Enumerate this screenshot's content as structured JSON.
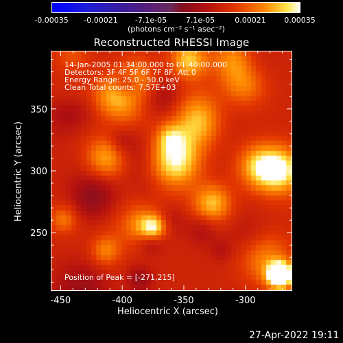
{
  "colorbar": {
    "tick_labels": [
      "-0.00035",
      "-0.00021",
      "-7.1e-05",
      "7.1e-05",
      "0.00021",
      "0.00035"
    ],
    "units": "(photons cm⁻² s⁻¹ asec⁻²)"
  },
  "chart_data": {
    "type": "heatmap",
    "title": "Reconstructed RHESSI Image",
    "xlabel": "Heliocentric X (arcsec)",
    "ylabel": "Heliocentric Y (arcsec)",
    "xlim": [
      -458,
      -262
    ],
    "ylim": [
      203,
      397
    ],
    "x_ticks": [
      -450,
      -400,
      -350,
      -300
    ],
    "y_ticks": [
      250,
      300,
      350
    ],
    "x_tick_labels": [
      "-450",
      "-400",
      "-350",
      "-300"
    ],
    "y_tick_labels": [
      "250",
      "300",
      "350"
    ],
    "color_range": [
      -0.00035,
      0.00035
    ],
    "colorbar_ticks": [
      -0.00035,
      -0.00021,
      -7.1e-05,
      7.1e-05,
      0.00021,
      0.00035
    ],
    "peak": [
      -271,
      215
    ],
    "annotations": [
      "14-Jan-2005 01:34:00.000 to 01:40:00.000",
      "Detectors: 3F 4F 5F 6F 7F 8F, Att 0",
      "Energy Range: 25.0 - 50.0 keV",
      "Clean     Total counts: 7.57E+03"
    ],
    "peak_label": "Position of Peak = [-271,215]"
  },
  "footer": {
    "date": "27-Apr-2022 19:11"
  }
}
